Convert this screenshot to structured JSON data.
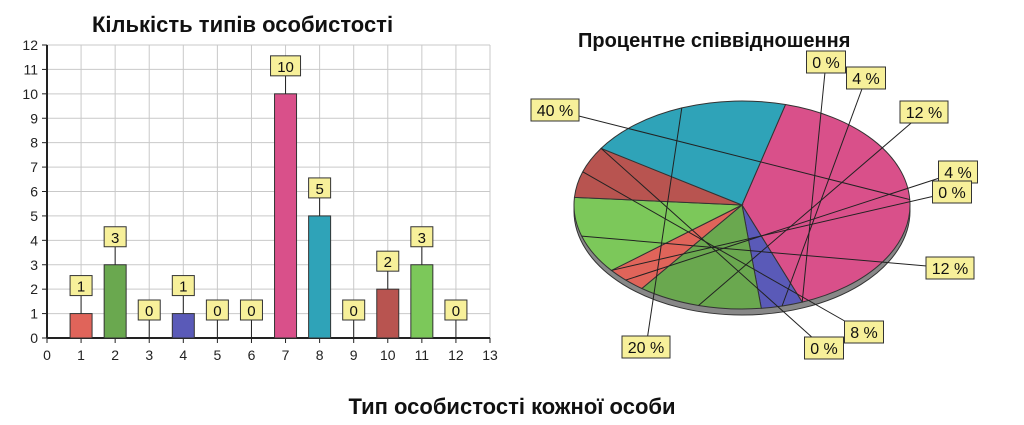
{
  "chart_data": [
    {
      "type": "bar",
      "title": "Кількість типів особистості",
      "xlabel": "Тип особистості кожної особи",
      "ylabel": "",
      "xlim": [
        0,
        13
      ],
      "ylim": [
        0,
        12
      ],
      "x_ticks": [
        "0",
        "1",
        "2",
        "3",
        "4",
        "5",
        "6",
        "7",
        "8",
        "9",
        "10",
        "11",
        "12",
        "13"
      ],
      "y_ticks": [
        "0",
        "1",
        "2",
        "3",
        "4",
        "5",
        "6",
        "7",
        "8",
        "9",
        "10",
        "11",
        "12"
      ],
      "grid": true,
      "categories": [
        "1",
        "2",
        "3",
        "4",
        "5",
        "6",
        "7",
        "8",
        "9",
        "10",
        "11",
        "12"
      ],
      "values": [
        1,
        3,
        0,
        1,
        0,
        0,
        10,
        5,
        0,
        2,
        3,
        0
      ],
      "data_labels": [
        "1",
        "3",
        "0",
        "1",
        "0",
        "0",
        "10",
        "5",
        "0",
        "2",
        "3",
        "0"
      ],
      "colors": [
        "#e0645a",
        "#6aa84f",
        "#cccccc",
        "#5a5ab8",
        "#cccccc",
        "#cccccc",
        "#d9508a",
        "#2fa3b8",
        "#cccccc",
        "#b85450",
        "#7cc85a",
        "#cccccc"
      ]
    },
    {
      "type": "pie",
      "title": "Процентне співвідношення",
      "slices": [
        {
          "label": "40 %",
          "value": 40,
          "color": "#d9508a"
        },
        {
          "label": "0 %",
          "value": 0,
          "color": "#cccccc"
        },
        {
          "label": "4 %",
          "value": 4,
          "color": "#5a5ab8"
        },
        {
          "label": "12 %",
          "value": 12,
          "color": "#6aa84f"
        },
        {
          "label": "4 %",
          "value": 4,
          "color": "#e0645a"
        },
        {
          "label": "0 %",
          "value": 0,
          "color": "#cccccc"
        },
        {
          "label": "12 %",
          "value": 12,
          "color": "#7cc85a"
        },
        {
          "label": "8 %",
          "value": 8,
          "color": "#b85450"
        },
        {
          "label": "0 %",
          "value": 0,
          "color": "#cccccc"
        },
        {
          "label": "20 %",
          "value": 20,
          "color": "#2fa3b8"
        }
      ]
    }
  ]
}
